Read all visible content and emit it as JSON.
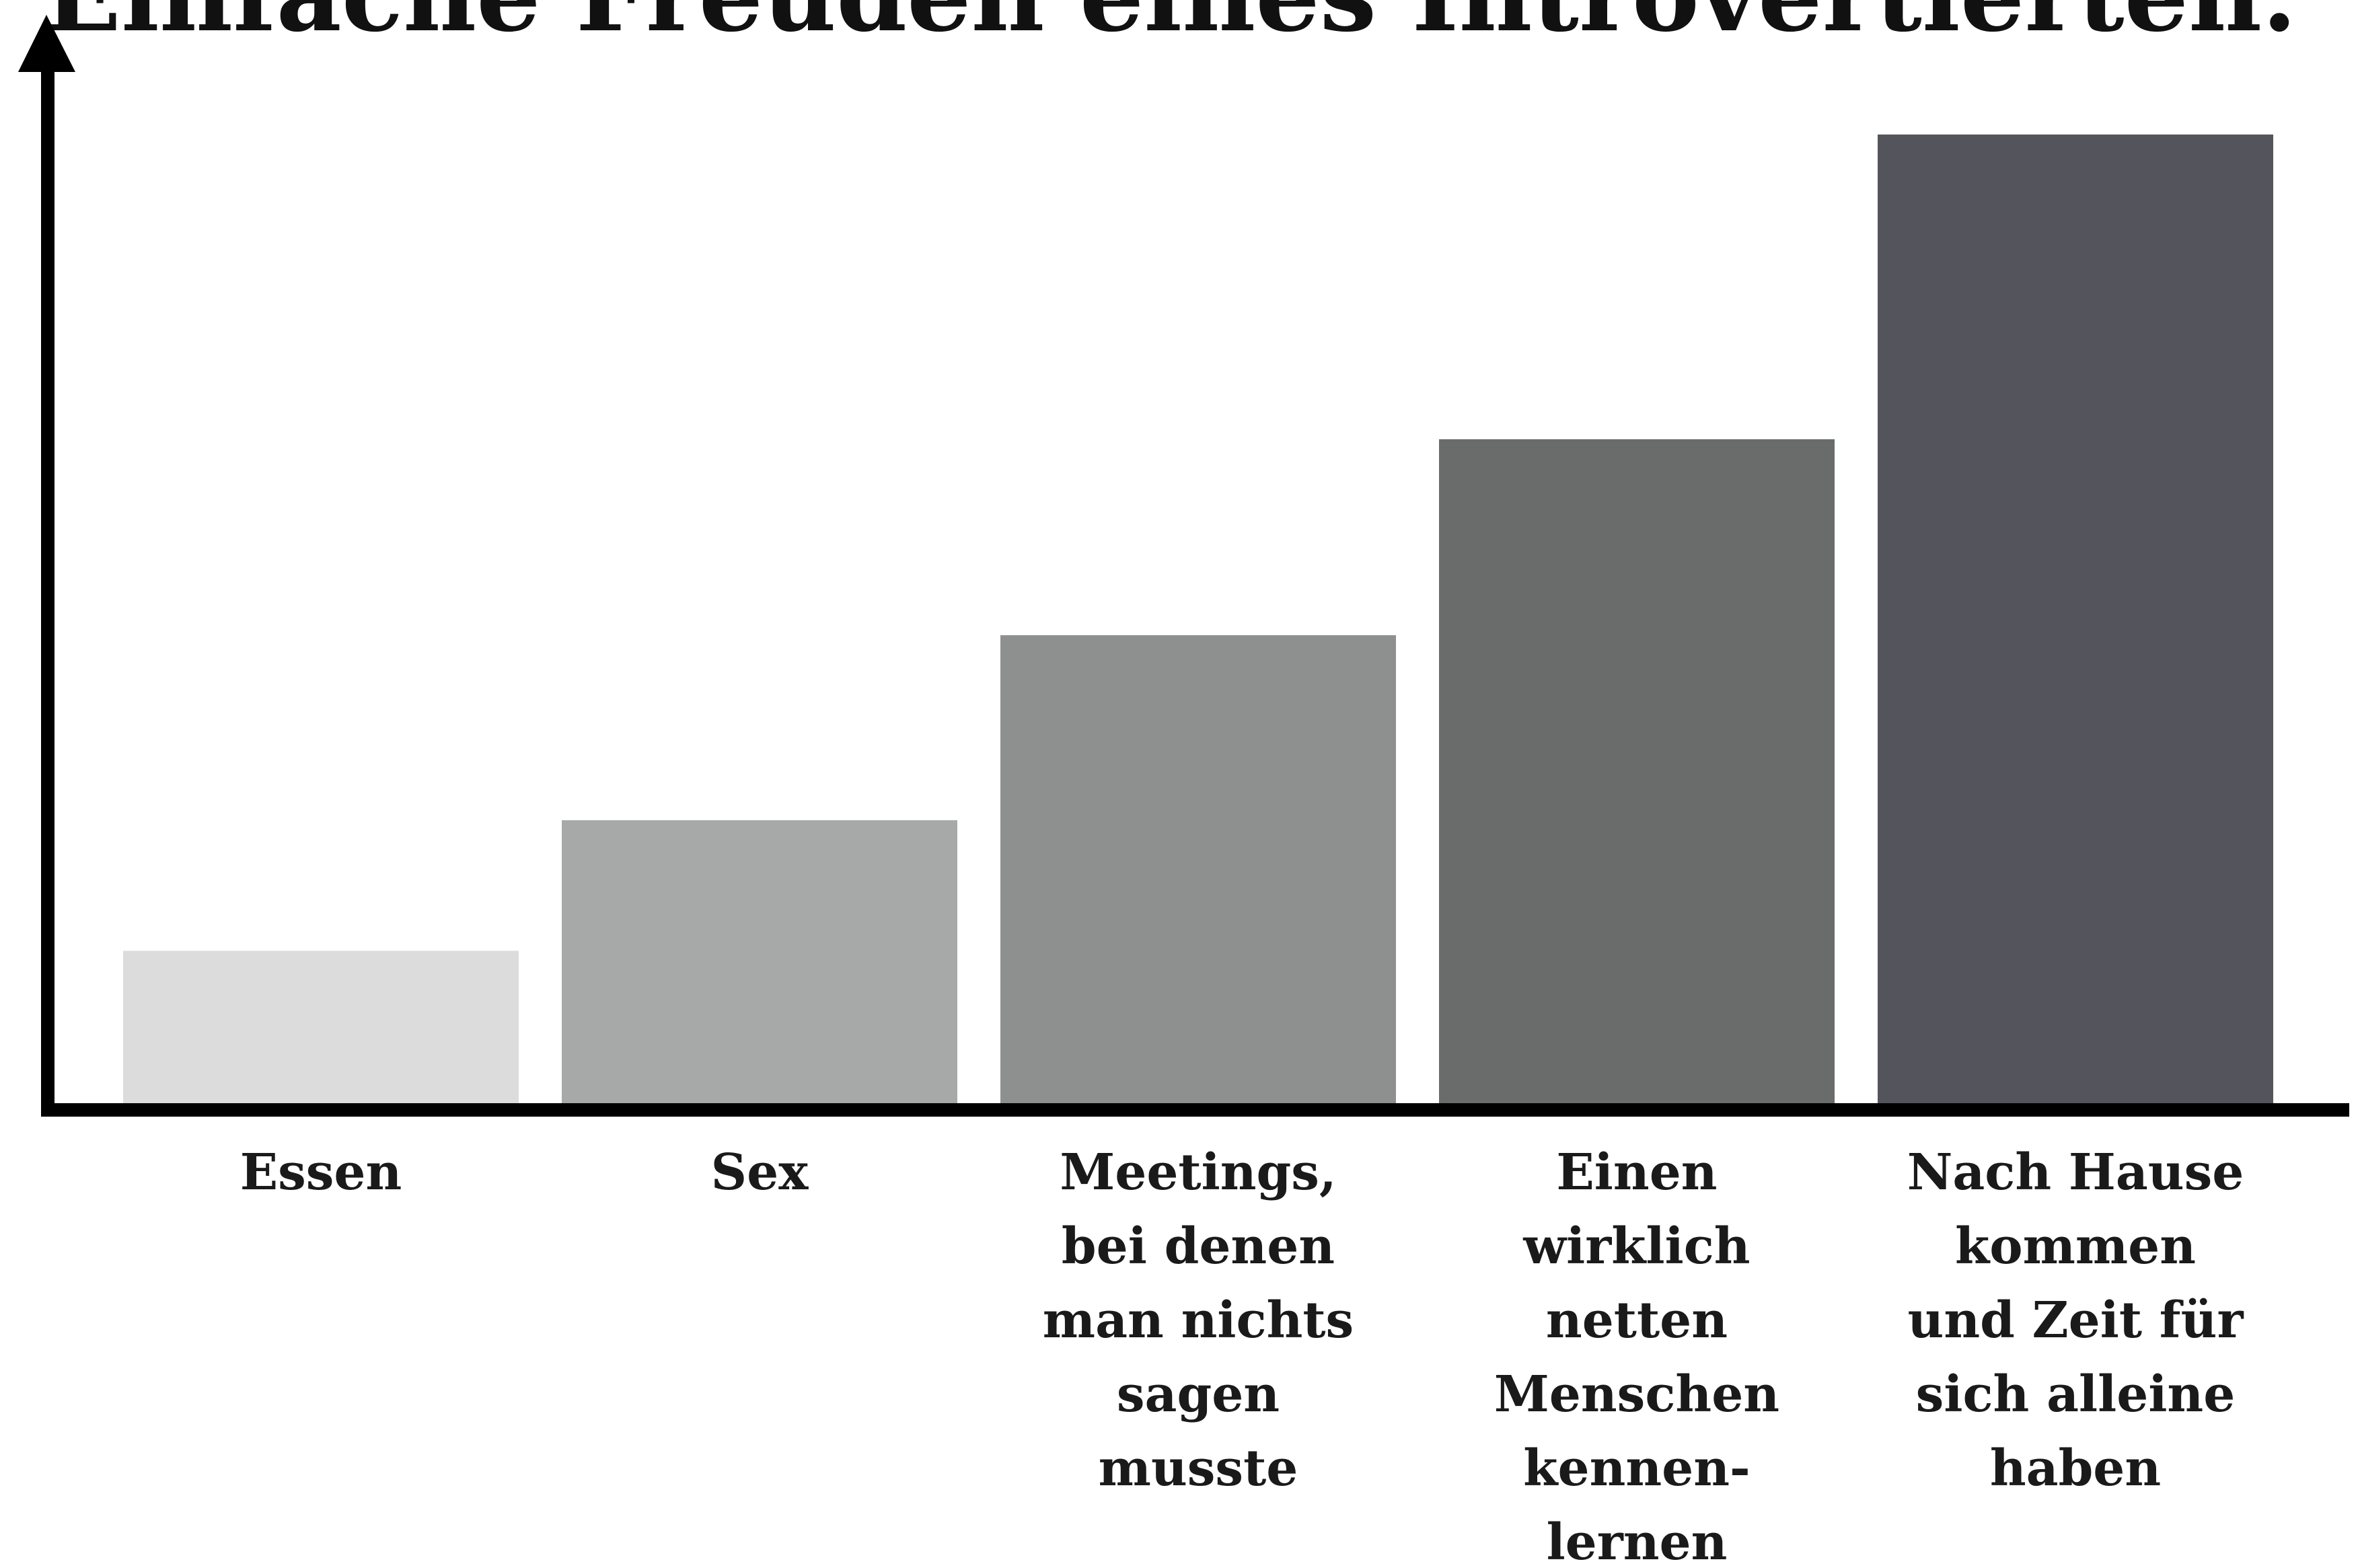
{
  "chart_data": {
    "type": "bar",
    "title": "Einfache Freuden eines Introvertierten.",
    "categories": [
      "Essen",
      "Sex",
      "Meetings,\nbei denen\nman nichts\nsagen\nmusste",
      "Einen\nwirklich\nnetten\nMenschen\nkennen-\nlernen",
      "Nach Hause\nkommen\nund Zeit für\nsich alleine\nhaben"
    ],
    "values": [
      14,
      26,
      43,
      61,
      89
    ],
    "colors": [
      "#dcdcdd",
      "#a7a8a8",
      "#8e8f8f",
      "#6a6b6b",
      "#54545d"
    ],
    "ylim": [
      0,
      100
    ]
  }
}
